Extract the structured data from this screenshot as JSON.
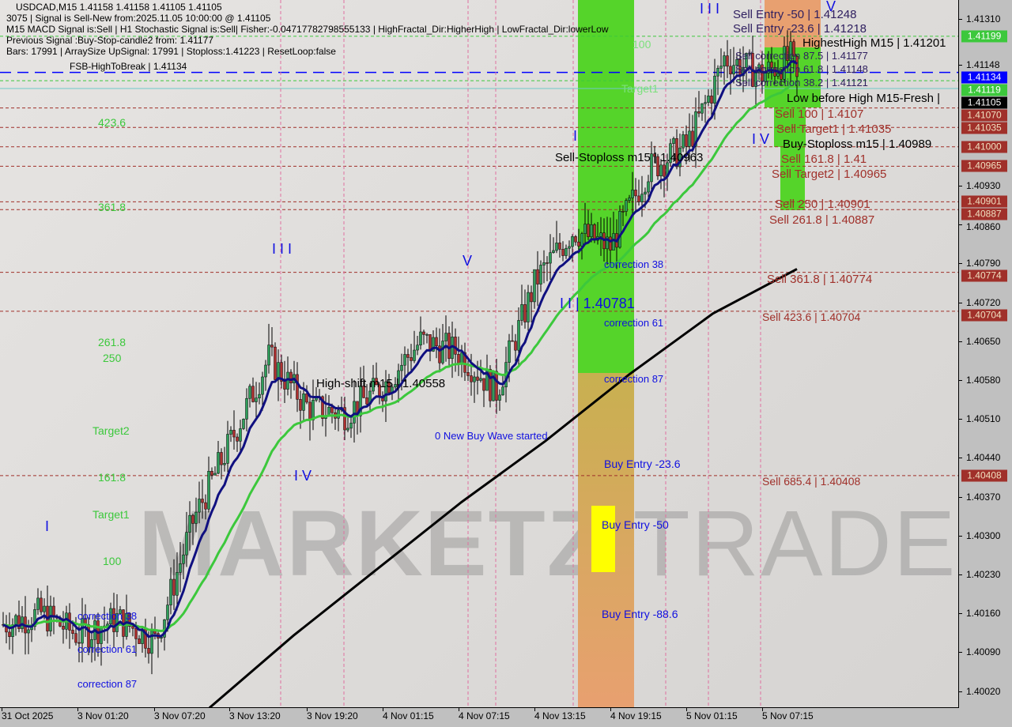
{
  "header": {
    "line1": "USDCAD,M15  1.41158 1.41158 1.41105 1.41105",
    "line2": "3075 | Signal is Sell-New from:2025.11.05 10:00:00 @ 1.41105",
    "line3": "M15 MACD Signal is:Sell | H1 Stochastic Signal is:Sell| Fisher:-0.04717782798555133 | HighFractal_Dir:HigherHigh | LowFractal_Dir:lowerLow",
    "line4": "Previous Signal :Buy-Stop-candle2 from: 1.41177",
    "line5": "Bars: 17991 | ArraySize UpSignal: 17991 | Stoploss:1.41223 | ResetLoop:false",
    "fsb": "FSB-HighToBreak | 1.41134"
  },
  "watermark": {
    "bold": "MARKETZI",
    "light": "TRADE"
  },
  "left_labels": [
    "423.6",
    "361.8",
    "261.8",
    "250",
    "Target2",
    "161.8",
    "Target1",
    "100"
  ],
  "left_corrections": [
    "correction 38",
    "correction 61",
    "correction 87"
  ],
  "waves": {
    "w1": "I",
    "w3a": "I I I",
    "w4a": "I V",
    "w5a": "V",
    "w2b": "I I | 1.40781",
    "w1b": "I",
    "w3b": "I I I",
    "w4b": "I V",
    "w5b": "V"
  },
  "mid_labels": {
    "high_shift": "High-shift m15 | 1.40558",
    "new_wave": "0 New Buy Wave started",
    "buy_entry_236": "Buy Entry -23.6",
    "buy_entry_50": "Buy Entry -50",
    "buy_entry_886": "Buy Entry -88.6",
    "corr38": "correction 38",
    "corr61": "correction 61",
    "corr87": "correction 87",
    "sell_stoploss": "Sell-Stoploss m15 | 1.40963",
    "target1": "Target1",
    "hundred": "100"
  },
  "right_labels": {
    "sell_entry_50": "Sell Entry -50 | 1.41248",
    "sell_entry_236": "Sell Entry -23.6 | 1.41218",
    "highest_high": "HighestHigh   M15 | 1.41201",
    "corr875": "Sell correction 87.5 | 1.41177",
    "corr618": "Sell correction 61.8 | 1.41148",
    "corr382": "Sell correction 38.2 | 1.41121",
    "low_before_high": "Low before High   M15-Fresh |",
    "sell100": "Sell 100 | 1.4107",
    "sell_t1": "Sell Target1 | 1.41035",
    "buy_sl": "Buy-Stoploss m15 | 1.40989",
    "sell1618": "Sell 161.8 | 1.41",
    "sell_t2": "Sell Target2 | 1.40965",
    "sell250": "Sell 250 | 1.40901",
    "sell2618": "Sell  261.8 | 1.40887",
    "sell3618": "Sell  361.8 | 1.40774",
    "sell4236": "Sell  423.6 | 1.40704",
    "sell6854": "Sell  685.4 | 1.40408"
  },
  "chart_data": {
    "type": "candlestick",
    "symbol": "USDCAD",
    "timeframe": "M15",
    "ylim": [
      1.3999,
      1.4132
    ],
    "y_ticks": [
      "1.41310",
      "1.41148",
      "1.40930",
      "1.40860",
      "1.40790",
      "1.40720",
      "1.40650",
      "1.40580",
      "1.40510",
      "1.40440",
      "1.40370",
      "1.40300",
      "1.40230",
      "1.40160",
      "1.40090",
      "1.40020"
    ],
    "x_ticks": [
      "31 Oct 2025",
      "3 Nov 01:20",
      "3 Nov 07:20",
      "3 Nov 13:20",
      "3 Nov 19:20",
      "4 Nov 01:15",
      "4 Nov 07:15",
      "4 Nov 13:15",
      "4 Nov 19:15",
      "5 Nov 01:15",
      "5 Nov 07:15"
    ],
    "approx_close_path": [
      1.4014,
      1.4016,
      1.4012,
      1.4015,
      1.4011,
      1.4033,
      1.4047,
      1.4062,
      1.4053,
      1.4052,
      1.4057,
      1.4065,
      1.4063,
      1.4056,
      1.4076,
      1.4085,
      1.4082,
      1.4096,
      1.41,
      1.411,
      1.4116,
      1.4113,
      1.4116,
      1.41105
    ],
    "ma_200_path": [
      1.3999,
      1.4012,
      1.4024,
      1.4036,
      1.4047,
      1.4059,
      1.407,
      1.4078
    ],
    "price_labels": [
      {
        "value": "1.41199",
        "bg": "#3cc83c",
        "fg": "#ffffff"
      },
      {
        "value": "1.41134",
        "bg": "#0000ff",
        "fg": "#ffffff"
      },
      {
        "value": "1.41119",
        "bg": "#3cc83c",
        "fg": "#ffffff"
      },
      {
        "value": "1.41105",
        "bg": "#000000",
        "fg": "#ffffff"
      },
      {
        "value": "1.41070",
        "bg": "#a0302a",
        "fg": "#f0e0c0"
      },
      {
        "value": "1.41035",
        "bg": "#a0302a",
        "fg": "#f0e0c0"
      },
      {
        "value": "1.41000",
        "bg": "#a0302a",
        "fg": "#f0e0c0"
      },
      {
        "value": "1.40965",
        "bg": "#a0302a",
        "fg": "#f0e0c0"
      },
      {
        "value": "1.40901",
        "bg": "#a0302a",
        "fg": "#f0e0c0"
      },
      {
        "value": "1.40887",
        "bg": "#a0302a",
        "fg": "#f0e0c0"
      },
      {
        "value": "1.40774",
        "bg": "#a0302a",
        "fg": "#f0e0c0"
      },
      {
        "value": "1.40704",
        "bg": "#a0302a",
        "fg": "#f0e0c0"
      },
      {
        "value": "1.40408",
        "bg": "#a0302a",
        "fg": "#f0e0c0"
      }
    ],
    "colors": {
      "bull": "#2e9e5a",
      "bear": "#b03030",
      "ma_fast": "#101080",
      "ma_mid": "#3cc83c",
      "ma_slow": "#000000",
      "level": "#a0302a"
    }
  }
}
